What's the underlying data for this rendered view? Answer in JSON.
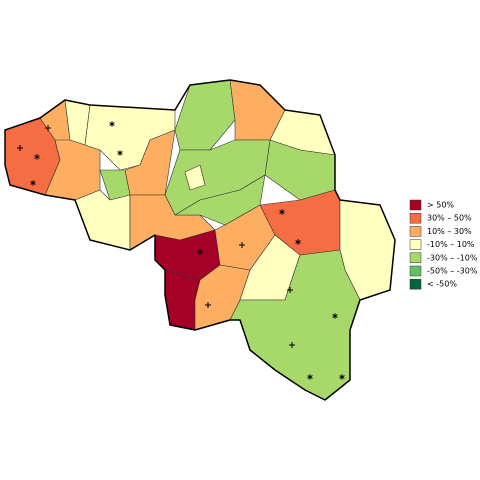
{
  "legend": {
    "items": [
      {
        "label": "> 50%",
        "color": "#a50026"
      },
      {
        "label": "30% – 50%",
        "color": "#f46d43"
      },
      {
        "label": "10% – 30%",
        "color": "#fdae61"
      },
      {
        "label": "-10% – 10%",
        "color": "#ffffbf"
      },
      {
        "label": "-30% – -10%",
        "color": "#a6d96a"
      },
      {
        "label": "-50% – -30%",
        "color": "#66bd63"
      },
      {
        "label": "< -50%",
        "color": "#006837"
      }
    ]
  }
}
